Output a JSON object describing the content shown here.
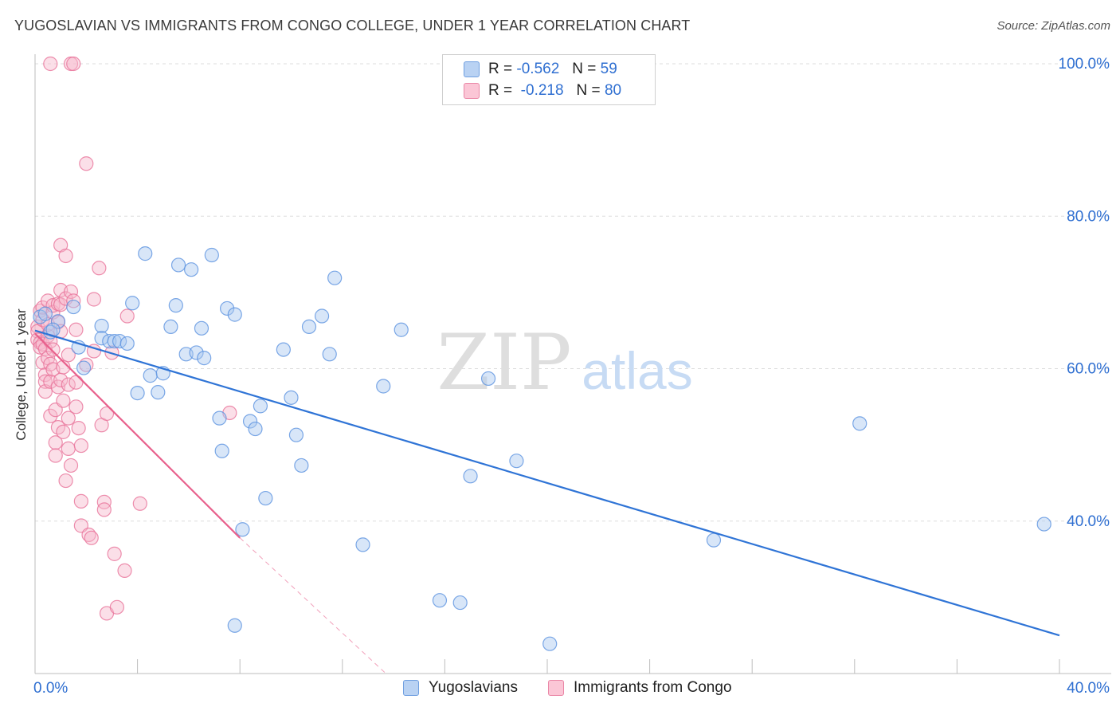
{
  "title": "YUGOSLAVIAN VS IMMIGRANTS FROM CONGO COLLEGE, UNDER 1 YEAR CORRELATION CHART",
  "source": "Source: ZipAtlas.com",
  "watermark": {
    "zip": "ZIP",
    "atlas": "atlas"
  },
  "colors": {
    "blue_fill": "#a9c8f0",
    "blue_stroke": "#5b92e0",
    "blue_line": "#2f74d6",
    "pink_fill": "#f7b8cc",
    "pink_stroke": "#e8739a",
    "pink_line": "#e8608c",
    "axis_text": "#2f6fd1",
    "grid": "#dddddd"
  },
  "legend": {
    "r_label": "R =",
    "n_label": "N =",
    "rows": [
      {
        "r": "-0.562",
        "n": "59"
      },
      {
        "r": "-0.218",
        "n": "80"
      }
    ]
  },
  "chart_data": {
    "type": "scatter",
    "title": "YUGOSLAVIAN VS IMMIGRANTS FROM CONGO COLLEGE, UNDER 1 YEAR CORRELATION CHART",
    "xlabel": "",
    "ylabel": "College, Under 1 year",
    "xlim": [
      0,
      40
    ],
    "ylim": [
      20,
      100
    ],
    "x_tick_labels": [
      "0.0%",
      "40.0%"
    ],
    "y_tick_labels": [
      "100.0%",
      "80.0%",
      "60.0%",
      "40.0%"
    ],
    "y_ticks": [
      100,
      80,
      60,
      40
    ],
    "grid": true,
    "legend_position": "top-center",
    "series": [
      {
        "name": "Yugoslavians",
        "r": -0.562,
        "n": 59,
        "trend": {
          "x0": 0,
          "y0": 65.0,
          "x1": 40,
          "y1": 25.0,
          "dashed_to": null
        },
        "points": [
          [
            0.2,
            66.8
          ],
          [
            0.4,
            67.2
          ],
          [
            0.6,
            64.8
          ],
          [
            0.9,
            66.2
          ],
          [
            1.5,
            68.1
          ],
          [
            1.7,
            62.8
          ],
          [
            1.9,
            60.1
          ],
          [
            2.6,
            65.6
          ],
          [
            2.6,
            64.0
          ],
          [
            2.9,
            63.6
          ],
          [
            3.1,
            63.6
          ],
          [
            3.3,
            63.6
          ],
          [
            3.6,
            63.3
          ],
          [
            3.8,
            68.6
          ],
          [
            4.0,
            56.8
          ],
          [
            4.3,
            75.1
          ],
          [
            4.5,
            59.1
          ],
          [
            4.8,
            56.9
          ],
          [
            5.0,
            59.4
          ],
          [
            5.3,
            65.5
          ],
          [
            5.5,
            68.3
          ],
          [
            5.6,
            73.6
          ],
          [
            5.9,
            61.9
          ],
          [
            6.1,
            73.0
          ],
          [
            6.3,
            62.1
          ],
          [
            6.5,
            65.3
          ],
          [
            6.6,
            61.4
          ],
          [
            6.9,
            74.9
          ],
          [
            7.2,
            53.5
          ],
          [
            7.3,
            49.2
          ],
          [
            7.5,
            67.9
          ],
          [
            7.8,
            67.1
          ],
          [
            8.1,
            38.9
          ],
          [
            8.4,
            53.1
          ],
          [
            8.6,
            52.1
          ],
          [
            8.8,
            55.1
          ],
          [
            9.0,
            43.0
          ],
          [
            9.7,
            62.5
          ],
          [
            10.0,
            56.2
          ],
          [
            10.2,
            51.3
          ],
          [
            10.4,
            47.3
          ],
          [
            10.7,
            65.5
          ],
          [
            11.2,
            66.9
          ],
          [
            11.5,
            61.9
          ],
          [
            11.7,
            71.9
          ],
          [
            12.8,
            36.9
          ],
          [
            13.6,
            57.7
          ],
          [
            14.3,
            65.1
          ],
          [
            15.8,
            29.6
          ],
          [
            16.6,
            29.3
          ],
          [
            17.0,
            45.9
          ],
          [
            17.7,
            58.7
          ],
          [
            18.8,
            47.9
          ],
          [
            26.5,
            37.5
          ],
          [
            32.2,
            52.8
          ],
          [
            39.4,
            39.6
          ],
          [
            20.1,
            23.9
          ],
          [
            7.8,
            26.3
          ],
          [
            0.7,
            65.1
          ]
        ]
      },
      {
        "name": "Immigrants from Congo",
        "r": -0.218,
        "n": 80,
        "trend": {
          "x0": 0,
          "y0": 64.6,
          "x1": 8.0,
          "y1": 37.8,
          "dashed_to": [
            13.7,
            20
          ]
        },
        "points": [
          [
            0.1,
            65.5
          ],
          [
            0.1,
            64.9
          ],
          [
            0.1,
            63.8
          ],
          [
            0.2,
            63.4
          ],
          [
            0.2,
            62.8
          ],
          [
            0.2,
            67.6
          ],
          [
            0.3,
            60.8
          ],
          [
            0.3,
            63.2
          ],
          [
            0.3,
            68.0
          ],
          [
            0.3,
            66.4
          ],
          [
            0.4,
            62.6
          ],
          [
            0.4,
            59.2
          ],
          [
            0.4,
            58.3
          ],
          [
            0.4,
            57.0
          ],
          [
            0.5,
            61.4
          ],
          [
            0.5,
            64.3
          ],
          [
            0.5,
            65.8
          ],
          [
            0.5,
            68.9
          ],
          [
            0.6,
            60.6
          ],
          [
            0.6,
            58.3
          ],
          [
            0.6,
            53.8
          ],
          [
            0.6,
            63.6
          ],
          [
            0.7,
            67.4
          ],
          [
            0.7,
            68.3
          ],
          [
            0.7,
            62.5
          ],
          [
            0.7,
            59.9
          ],
          [
            0.8,
            54.6
          ],
          [
            0.8,
            50.3
          ],
          [
            0.8,
            48.6
          ],
          [
            0.9,
            68.5
          ],
          [
            0.9,
            66.1
          ],
          [
            0.9,
            57.6
          ],
          [
            0.9,
            52.3
          ],
          [
            1.0,
            76.2
          ],
          [
            1.0,
            70.3
          ],
          [
            1.0,
            68.4
          ],
          [
            1.0,
            64.9
          ],
          [
            1.0,
            58.5
          ],
          [
            1.1,
            60.2
          ],
          [
            1.1,
            55.8
          ],
          [
            1.1,
            51.7
          ],
          [
            1.2,
            45.3
          ],
          [
            1.2,
            74.8
          ],
          [
            1.2,
            69.2
          ],
          [
            1.3,
            61.8
          ],
          [
            1.3,
            57.9
          ],
          [
            1.3,
            53.5
          ],
          [
            1.3,
            49.5
          ],
          [
            1.4,
            47.3
          ],
          [
            1.4,
            70.1
          ],
          [
            1.5,
            68.9
          ],
          [
            1.6,
            65.1
          ],
          [
            1.6,
            58.2
          ],
          [
            1.6,
            55.0
          ],
          [
            1.7,
            52.2
          ],
          [
            1.8,
            49.9
          ],
          [
            1.8,
            42.6
          ],
          [
            1.8,
            39.4
          ],
          [
            2.0,
            86.9
          ],
          [
            2.0,
            60.5
          ],
          [
            2.1,
            38.2
          ],
          [
            2.2,
            37.8
          ],
          [
            2.3,
            62.3
          ],
          [
            2.3,
            69.1
          ],
          [
            2.5,
            73.2
          ],
          [
            2.6,
            52.6
          ],
          [
            2.7,
            42.5
          ],
          [
            2.7,
            41.5
          ],
          [
            2.8,
            54.1
          ],
          [
            2.8,
            27.9
          ],
          [
            3.0,
            62.1
          ],
          [
            3.1,
            35.7
          ],
          [
            3.2,
            28.7
          ],
          [
            3.5,
            33.5
          ],
          [
            3.6,
            66.9
          ],
          [
            4.1,
            42.3
          ],
          [
            7.6,
            54.2
          ],
          [
            0.6,
            100
          ],
          [
            1.4,
            100
          ],
          [
            1.5,
            100
          ]
        ]
      }
    ]
  },
  "bottom_legend": [
    "Yugoslavians",
    "Immigrants from Congo"
  ]
}
